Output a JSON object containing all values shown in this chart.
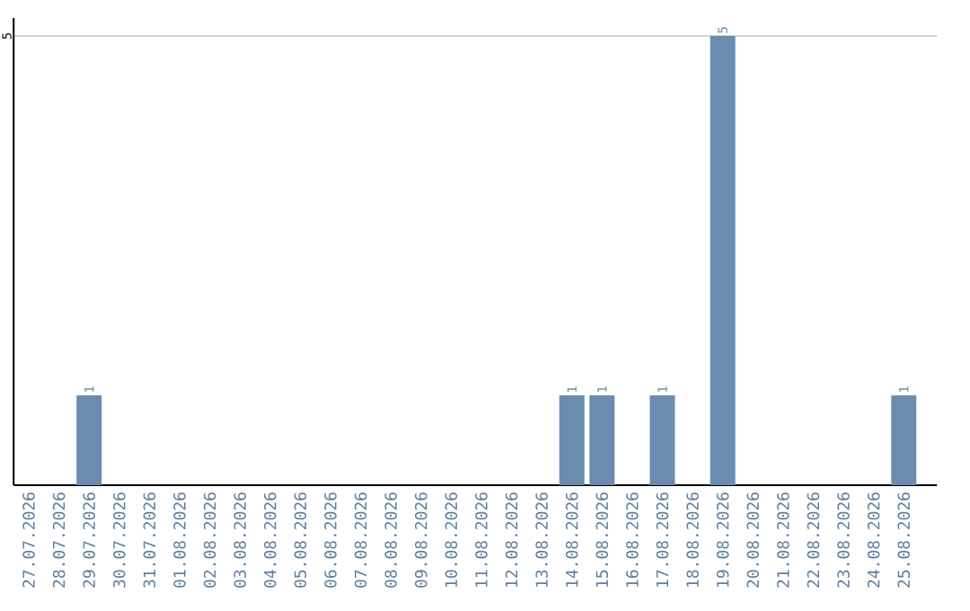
{
  "chart_data": {
    "type": "bar",
    "categories": [
      "27.07.2026",
      "28.07.2026",
      "29.07.2026",
      "30.07.2026",
      "31.07.2026",
      "01.08.2026",
      "02.08.2026",
      "03.08.2026",
      "04.08.2026",
      "05.08.2026",
      "06.08.2026",
      "07.08.2026",
      "08.08.2026",
      "09.08.2026",
      "10.08.2026",
      "11.08.2026",
      "12.08.2026",
      "13.08.2026",
      "14.08.2026",
      "15.08.2026",
      "16.08.2026",
      "17.08.2026",
      "18.08.2026",
      "19.08.2026",
      "20.08.2026",
      "21.08.2026",
      "22.08.2026",
      "23.08.2026",
      "24.08.2026",
      "25.08.2026"
    ],
    "values": [
      0,
      0,
      1,
      0,
      0,
      0,
      0,
      0,
      0,
      0,
      0,
      0,
      0,
      0,
      0,
      0,
      0,
      0,
      1,
      1,
      0,
      1,
      0,
      5,
      0,
      0,
      0,
      0,
      0,
      1
    ],
    "value_labels": [
      null,
      null,
      "1",
      null,
      null,
      null,
      null,
      null,
      null,
      null,
      null,
      null,
      null,
      null,
      null,
      null,
      null,
      null,
      "1",
      "1",
      null,
      "1",
      null,
      "5",
      null,
      null,
      null,
      null,
      null,
      "1"
    ],
    "color": "#6a8caf",
    "ylim": [
      0,
      5.2
    ],
    "yticks": [
      5
    ],
    "grid": "y"
  }
}
